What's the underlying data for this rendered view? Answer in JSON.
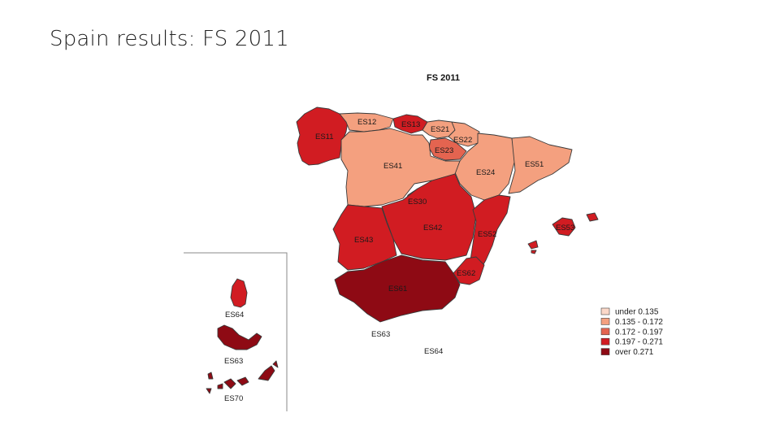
{
  "slide": {
    "title": "Spain results: FS 2011"
  },
  "map": {
    "title": "FS 2011",
    "legend": [
      {
        "label": "under 0.135",
        "color": "#fbd8c8"
      },
      {
        "label": "0.135 - 0.172",
        "color": "#f4a07f"
      },
      {
        "label": "0.172 - 0.197",
        "color": "#e46450"
      },
      {
        "label": "0.197 - 0.271",
        "color": "#d11c22"
      },
      {
        "label": "over 0.271",
        "color": "#8e0a14"
      }
    ],
    "regions": [
      {
        "code": "ES11",
        "class": 3
      },
      {
        "code": "ES12",
        "class": 1
      },
      {
        "code": "ES13",
        "class": 3
      },
      {
        "code": "ES21",
        "class": 1
      },
      {
        "code": "ES22",
        "class": 1
      },
      {
        "code": "ES23",
        "class": 2
      },
      {
        "code": "ES24",
        "class": 1
      },
      {
        "code": "ES30",
        "class": 3
      },
      {
        "code": "ES41",
        "class": 1
      },
      {
        "code": "ES42",
        "class": 3
      },
      {
        "code": "ES43",
        "class": 3
      },
      {
        "code": "ES51",
        "class": 1
      },
      {
        "code": "ES52",
        "class": 3
      },
      {
        "code": "ES53",
        "class": 3
      },
      {
        "code": "ES61",
        "class": 4
      },
      {
        "code": "ES62",
        "class": 3
      },
      {
        "code": "ES63",
        "class": 4
      },
      {
        "code": "ES64",
        "class": 3
      },
      {
        "code": "ES70",
        "class": 4
      }
    ],
    "stray_labels": [
      "ES63",
      "ES64"
    ]
  }
}
